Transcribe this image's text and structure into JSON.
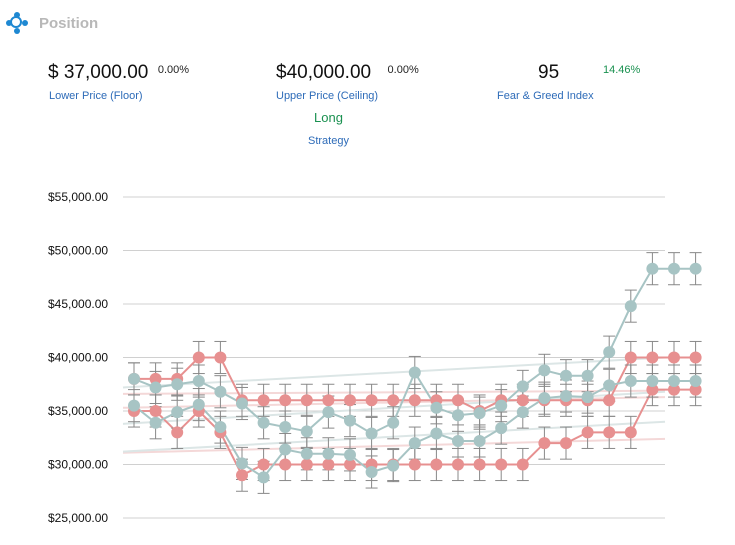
{
  "header": {
    "title": "Position",
    "logo_icon": "position-logo-icon"
  },
  "stats": {
    "floor": {
      "value": "$ 37,000.00",
      "pct": "0.00%",
      "label": "Lower Price (Floor)"
    },
    "ceiling": {
      "value": "$40,000.00",
      "pct": "0.00%",
      "label": "Upper Price (Ceiling)"
    },
    "fear": {
      "value": "95",
      "pct": "14.46%",
      "label": "Fear & Greed Index"
    },
    "strategy": {
      "value": "Long",
      "label": "Strategy"
    }
  },
  "colors": {
    "accent_blue": "#2d6bb8",
    "green": "#1a9150",
    "red_series": "#e79090",
    "teal_series": "#a7c4c4",
    "grid": "#cccccc"
  },
  "chart_data": {
    "type": "line",
    "ylim": [
      25000,
      55000
    ],
    "yticks": [
      "$25,000.00",
      "$30,000.00",
      "$35,000.00",
      "$40,000.00",
      "$45,000.00",
      "$50,000.00",
      "$55,000.00"
    ],
    "ytick_values": [
      25000,
      30000,
      35000,
      40000,
      45000,
      50000,
      55000
    ],
    "x": [
      1,
      2,
      3,
      4,
      5,
      6,
      7,
      8,
      9,
      10,
      11,
      12,
      13,
      14,
      15,
      16,
      17,
      18,
      19,
      20,
      21,
      22,
      23,
      24,
      25,
      26,
      27
    ],
    "grid": true,
    "series": [
      {
        "color": "#e79090",
        "error": 1500,
        "values": [
          38000,
          38000,
          38000,
          40000,
          40000,
          36000,
          36000,
          36000,
          36000,
          36000,
          36000,
          36000,
          36000,
          36000,
          36000,
          36000,
          35000,
          36000,
          36000,
          36000,
          36000,
          36000,
          36000,
          40000,
          40000,
          40000,
          40000
        ]
      },
      {
        "color": "#e79090",
        "error": 1500,
        "values": [
          35000,
          35000,
          33000,
          35000,
          33000,
          29000,
          30000,
          30000,
          30000,
          30000,
          30000,
          30000,
          30000,
          30000,
          30000,
          30000,
          30000,
          30000,
          30000,
          32000,
          32000,
          33000,
          33000,
          33000,
          37000,
          37000,
          37000
        ]
      },
      {
        "color": "#a7c4c4",
        "error": 1500,
        "values": [
          38000,
          37200,
          37500,
          37800,
          36800,
          35700,
          33900,
          33500,
          33100,
          34900,
          34100,
          32900,
          33900,
          38600,
          35300,
          34600,
          34800,
          35500,
          37300,
          38800,
          38300,
          38300,
          40500,
          44800,
          48300,
          48300,
          48300
        ]
      },
      {
        "color": "#a7c4c4",
        "error": 1500,
        "values": [
          35500,
          33900,
          34900,
          35600,
          33500,
          30100,
          28800,
          31400,
          31000,
          31000,
          30900,
          29300,
          29900,
          32000,
          32900,
          32200,
          32200,
          33400,
          34900,
          36200,
          36400,
          36300,
          37400,
          37800,
          37800,
          37800,
          37800
        ]
      }
    ],
    "trendlines": [
      {
        "color": "#dce6e6",
        "from": 37200,
        "to": 40000
      },
      {
        "color": "#f4d8d8",
        "from": 36600,
        "to": 36900
      },
      {
        "color": "#f4d8d8",
        "from": 35300,
        "to": 36300
      },
      {
        "color": "#dce6e6",
        "from": 33800,
        "to": 36800
      },
      {
        "color": "#f4d8d8",
        "from": 31100,
        "to": 32400
      },
      {
        "color": "#dce6e6",
        "from": 31200,
        "to": 34000
      }
    ]
  }
}
